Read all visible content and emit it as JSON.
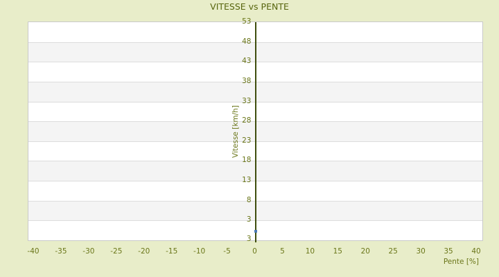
{
  "chart_data": {
    "type": "scatter",
    "title": "VITESSE vs PENTE",
    "xlabel": "Pente [%]",
    "ylabel": "Vitesse [km/h]",
    "xlim": [
      -41,
      41
    ],
    "ylim": [
      -2,
      53
    ],
    "x_ticks": [
      -40,
      -35,
      -30,
      -25,
      -20,
      -15,
      -10,
      -5,
      0,
      5,
      10,
      15,
      20,
      25,
      30,
      35,
      40
    ],
    "y_ticks": [
      53,
      48,
      43,
      38,
      33,
      28,
      23,
      18,
      13,
      8,
      3
    ],
    "y_axis_bottom_edge_label": "3",
    "grid": "alternating horizontal bands with light gridlines at each y tick",
    "legend": "none",
    "zero_axis_line": {
      "x": 0,
      "color": "#3e4d0d"
    },
    "series": [
      {
        "name": "Vitesse vs Pente",
        "marker": "square",
        "color": "#4a7ab5",
        "points": [
          {
            "x": 0,
            "y": 0.2
          }
        ]
      }
    ]
  },
  "colors": {
    "page_background": "#e8edc9",
    "plot_background": "#ffffff",
    "band_gray": "#f4f4f4",
    "gridline": "#dcdcdc",
    "plot_border": "#c9c9c9",
    "title_text": "#57650e",
    "axis_text": "#6a7619",
    "zero_line": "#3e4d0d",
    "marker": "#4a7ab5"
  }
}
